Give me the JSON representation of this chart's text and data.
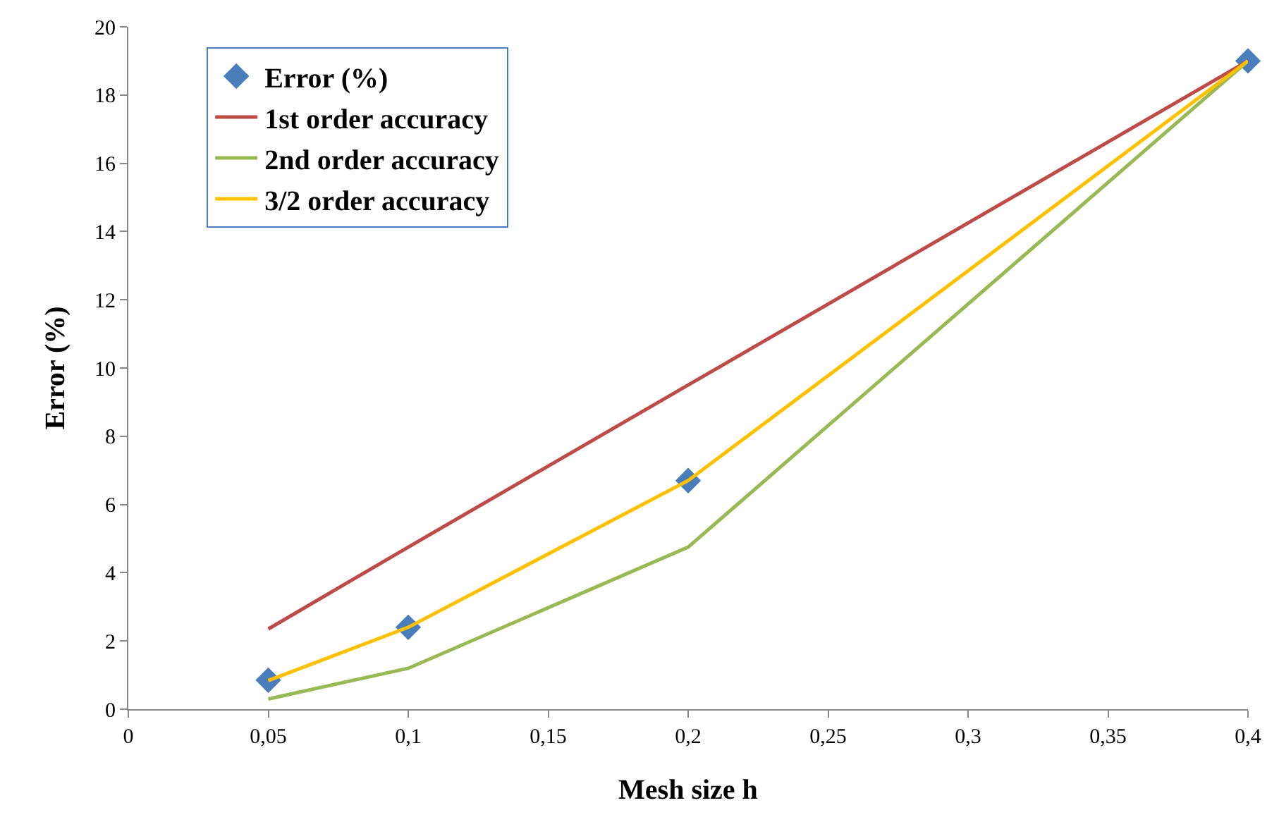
{
  "chart_data": {
    "type": "line",
    "xlabel": "Mesh size h",
    "ylabel": "Error (%)",
    "x": [
      0.05,
      0.1,
      0.2,
      0.4
    ],
    "series": [
      {
        "name": "Error (%)",
        "type": "scatter",
        "marker": "diamond",
        "color": "#4a7ebb",
        "values": [
          0.85,
          2.4,
          6.7,
          19
        ]
      },
      {
        "name": "1st order accuracy",
        "marker": "none",
        "color": "#be4b48",
        "values": [
          2.35,
          4.75,
          9.5,
          19
        ]
      },
      {
        "name": "2nd order accuracy",
        "marker": "none",
        "color": "#98b954",
        "values": [
          0.3,
          1.2,
          4.75,
          19
        ]
      },
      {
        "name": "3/2 order accuracy",
        "marker": "none",
        "color": "#ffc000",
        "values": [
          0.84,
          2.4,
          6.7,
          19
        ]
      }
    ],
    "xlim": [
      0,
      0.4
    ],
    "xticks": [
      0,
      {
        "value": 0.05,
        "label": "0,05"
      },
      {
        "value": 0.1,
        "label": "0,1"
      },
      {
        "value": 0.15,
        "label": "0,15"
      },
      {
        "value": 0.2,
        "label": "0,2"
      },
      {
        "value": 0.25,
        "label": "0,25"
      },
      {
        "value": 0.3,
        "label": "0,3"
      },
      {
        "value": 0.35,
        "label": "0,35"
      },
      {
        "value": 0.4,
        "label": "0,4"
      }
    ],
    "ylim": [
      0,
      20
    ],
    "yticks": [
      0,
      2,
      4,
      6,
      8,
      10,
      12,
      14,
      16,
      18,
      20
    ],
    "grid": false,
    "legend": "top left",
    "line_style": "solid"
  }
}
